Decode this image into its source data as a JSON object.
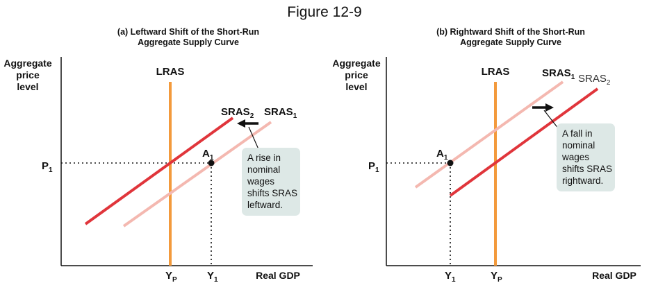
{
  "figure_title": "Figure 12-9",
  "panel_a": {
    "title_line1": "(a) Leftward Shift of the Short-Run",
    "title_line2": "Aggregate Supply Curve",
    "y_axis_label": [
      "Aggregate",
      "price",
      "level"
    ],
    "x_axis_label": "Real GDP",
    "lras_label": "LRAS",
    "sras2_label": "SRAS",
    "sras2_sub": "2",
    "sras1_label": "SRAS",
    "sras1_sub": "1",
    "point_label": "A",
    "point_sub": "1",
    "p1_label": "P",
    "p1_sub": "1",
    "yp_label": "Y",
    "yp_sub": "P",
    "y1_label": "Y",
    "y1_sub": "1",
    "callout": [
      "A rise in",
      "nominal",
      "wages",
      "shifts SRAS",
      "leftward."
    ]
  },
  "panel_b": {
    "title_line1": "(b) Rightward Shift of the Short-Run",
    "title_line2": "Aggregate Supply Curve",
    "y_axis_label": [
      "Aggregate",
      "price",
      "level"
    ],
    "x_axis_label": "Real GDP",
    "lras_label": "LRAS",
    "sras1_label": "SRAS",
    "sras1_sub": "1",
    "sras2_label": "SRAS",
    "sras2_sub": "2",
    "point_label": "A",
    "point_sub": "1",
    "p1_label": "P",
    "p1_sub": "1",
    "y1_label": "Y",
    "y1_sub": "1",
    "yp_label": "Y",
    "yp_sub": "P",
    "callout": [
      "A fall in",
      "nominal",
      "wages",
      "shifts SRAS",
      "rightward."
    ]
  },
  "colors": {
    "lras": "#f39a3c",
    "sras_original": "#f4b8b0",
    "sras_shifted": "#e0353b",
    "callout_bg": "#dde8e6",
    "axis": "#111111"
  }
}
